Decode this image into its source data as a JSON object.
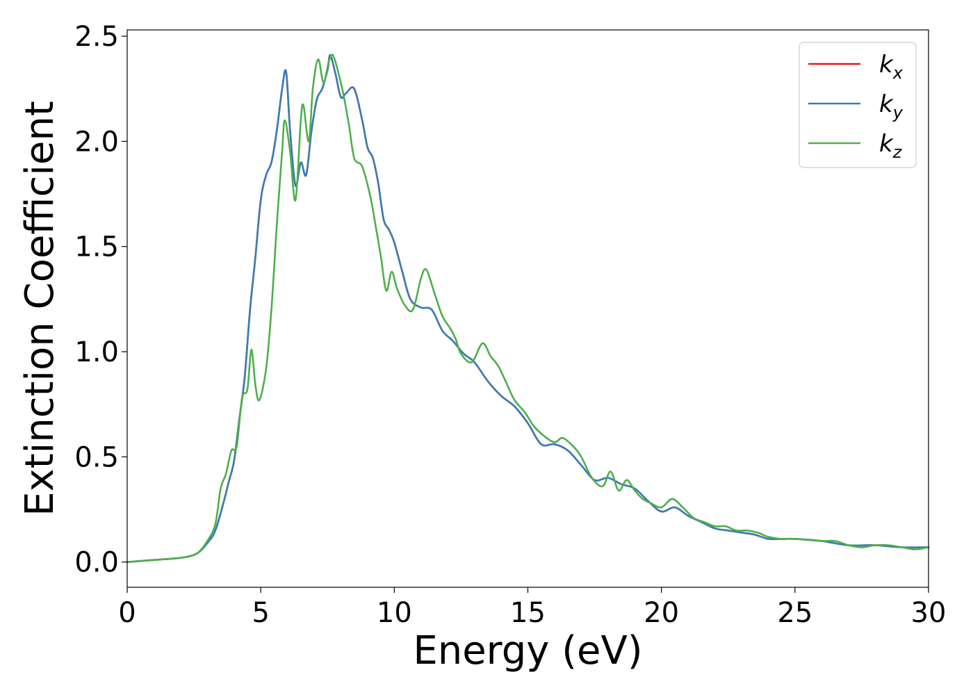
{
  "chart_data": {
    "type": "line",
    "xlabel": "Energy (eV)",
    "ylabel": "Extinction Coefficient",
    "xlim": [
      0,
      30
    ],
    "ylim": [
      -0.12,
      2.53
    ],
    "xticks": [
      "0",
      "5",
      "10",
      "15",
      "20",
      "25",
      "30"
    ],
    "yticks": [
      "0.0",
      "0.5",
      "1.0",
      "1.5",
      "2.0",
      "2.5"
    ],
    "grid": false,
    "legend_position": "top-right",
    "series": [
      {
        "name": "k",
        "subscript": "x",
        "color": "#e41a1c",
        "x": [
          0,
          1,
          2,
          2.6,
          3,
          3.3,
          3.6,
          3.8,
          4.0,
          4.2,
          4.4,
          4.6,
          4.8,
          5.0,
          5.2,
          5.4,
          5.6,
          5.8,
          5.95,
          6.1,
          6.3,
          6.5,
          6.7,
          6.9,
          7.1,
          7.3,
          7.5,
          7.6,
          7.8,
          8.0,
          8.2,
          8.5,
          8.8,
          9.0,
          9.2,
          9.4,
          9.6,
          9.8,
          10.0,
          10.3,
          10.6,
          11.0,
          11.4,
          11.8,
          12.2,
          12.6,
          13.0,
          13.5,
          14.0,
          14.5,
          15.0,
          15.5,
          16.0,
          16.5,
          17.0,
          17.5,
          18.0,
          18.5,
          19.0,
          19.5,
          20.0,
          20.5,
          21.0,
          21.5,
          22.0,
          22.5,
          23.0,
          23.5,
          24.0,
          24.5,
          25.0,
          26.0,
          27.0,
          28.0,
          29.0,
          30.0
        ],
        "values": [
          0.0,
          0.01,
          0.02,
          0.04,
          0.09,
          0.15,
          0.28,
          0.38,
          0.48,
          0.68,
          0.88,
          1.2,
          1.45,
          1.72,
          1.84,
          1.9,
          2.05,
          2.25,
          2.33,
          2.05,
          1.79,
          1.9,
          1.84,
          2.05,
          2.2,
          2.25,
          2.34,
          2.41,
          2.32,
          2.21,
          2.23,
          2.25,
          2.1,
          1.97,
          1.92,
          1.8,
          1.63,
          1.58,
          1.52,
          1.38,
          1.25,
          1.21,
          1.2,
          1.1,
          1.05,
          0.99,
          0.95,
          0.86,
          0.79,
          0.74,
          0.66,
          0.56,
          0.56,
          0.53,
          0.46,
          0.39,
          0.4,
          0.37,
          0.35,
          0.29,
          0.24,
          0.26,
          0.22,
          0.19,
          0.16,
          0.15,
          0.14,
          0.13,
          0.11,
          0.11,
          0.11,
          0.1,
          0.08,
          0.08,
          0.07,
          0.07
        ]
      },
      {
        "name": "k",
        "subscript": "y",
        "color": "#377eb8",
        "x": [
          0,
          1,
          2,
          2.6,
          3,
          3.3,
          3.6,
          3.8,
          4.0,
          4.2,
          4.4,
          4.6,
          4.8,
          5.0,
          5.2,
          5.4,
          5.6,
          5.8,
          5.95,
          6.1,
          6.3,
          6.5,
          6.7,
          6.9,
          7.1,
          7.3,
          7.5,
          7.6,
          7.8,
          8.0,
          8.2,
          8.5,
          8.8,
          9.0,
          9.2,
          9.4,
          9.6,
          9.8,
          10.0,
          10.3,
          10.6,
          11.0,
          11.4,
          11.8,
          12.2,
          12.6,
          13.0,
          13.5,
          14.0,
          14.5,
          15.0,
          15.5,
          16.0,
          16.5,
          17.0,
          17.5,
          18.0,
          18.5,
          19.0,
          19.5,
          20.0,
          20.5,
          21.0,
          21.5,
          22.0,
          22.5,
          23.0,
          23.5,
          24.0,
          24.5,
          25.0,
          26.0,
          27.0,
          28.0,
          29.0,
          30.0
        ],
        "values": [
          0.0,
          0.01,
          0.02,
          0.04,
          0.09,
          0.15,
          0.28,
          0.38,
          0.48,
          0.68,
          0.88,
          1.2,
          1.45,
          1.72,
          1.84,
          1.9,
          2.05,
          2.25,
          2.33,
          2.05,
          1.79,
          1.9,
          1.84,
          2.05,
          2.2,
          2.25,
          2.34,
          2.41,
          2.32,
          2.21,
          2.23,
          2.25,
          2.1,
          1.97,
          1.92,
          1.8,
          1.63,
          1.58,
          1.52,
          1.38,
          1.25,
          1.21,
          1.2,
          1.1,
          1.05,
          0.99,
          0.95,
          0.86,
          0.79,
          0.74,
          0.66,
          0.56,
          0.56,
          0.53,
          0.46,
          0.39,
          0.4,
          0.37,
          0.35,
          0.29,
          0.24,
          0.26,
          0.22,
          0.19,
          0.16,
          0.15,
          0.14,
          0.13,
          0.11,
          0.11,
          0.11,
          0.1,
          0.08,
          0.08,
          0.07,
          0.07
        ]
      },
      {
        "name": "k",
        "subscript": "z",
        "color": "#4daf4a",
        "x": [
          0,
          1,
          2,
          2.6,
          3,
          3.3,
          3.5,
          3.7,
          3.9,
          4.1,
          4.3,
          4.5,
          4.65,
          4.8,
          4.95,
          5.2,
          5.4,
          5.6,
          5.8,
          5.9,
          6.1,
          6.3,
          6.5,
          6.6,
          6.8,
          6.95,
          7.15,
          7.35,
          7.55,
          7.7,
          7.9,
          8.1,
          8.3,
          8.5,
          8.8,
          9.1,
          9.3,
          9.5,
          9.7,
          9.9,
          10.1,
          10.4,
          10.7,
          11.0,
          11.2,
          11.5,
          11.8,
          12.1,
          12.3,
          12.5,
          12.9,
          13.3,
          13.6,
          13.9,
          14.2,
          14.5,
          14.9,
          15.2,
          15.6,
          16.0,
          16.3,
          16.7,
          17.0,
          17.4,
          17.8,
          18.1,
          18.4,
          18.7,
          19.0,
          19.3,
          19.6,
          20.0,
          20.4,
          20.8,
          21.2,
          21.6,
          22.0,
          22.4,
          22.8,
          23.2,
          23.6,
          24.0,
          24.5,
          25.0,
          26.0,
          26.5,
          27.0,
          27.5,
          28.0,
          28.5,
          29.0,
          29.5,
          30.0
        ],
        "values": [
          0.0,
          0.01,
          0.02,
          0.04,
          0.1,
          0.18,
          0.35,
          0.42,
          0.53,
          0.55,
          0.78,
          0.82,
          1.01,
          0.84,
          0.77,
          0.92,
          1.2,
          1.6,
          1.95,
          2.1,
          1.95,
          1.72,
          2.1,
          2.17,
          2.0,
          2.25,
          2.39,
          2.28,
          2.38,
          2.41,
          2.33,
          2.22,
          2.08,
          1.92,
          1.88,
          1.74,
          1.6,
          1.45,
          1.29,
          1.38,
          1.3,
          1.22,
          1.2,
          1.35,
          1.39,
          1.28,
          1.17,
          1.11,
          1.06,
          0.99,
          0.95,
          1.04,
          0.98,
          0.93,
          0.85,
          0.77,
          0.71,
          0.65,
          0.6,
          0.57,
          0.59,
          0.55,
          0.5,
          0.4,
          0.36,
          0.43,
          0.34,
          0.39,
          0.34,
          0.3,
          0.28,
          0.26,
          0.3,
          0.26,
          0.21,
          0.19,
          0.17,
          0.17,
          0.15,
          0.15,
          0.14,
          0.12,
          0.11,
          0.11,
          0.1,
          0.1,
          0.08,
          0.07,
          0.08,
          0.08,
          0.07,
          0.06,
          0.07
        ]
      }
    ]
  }
}
